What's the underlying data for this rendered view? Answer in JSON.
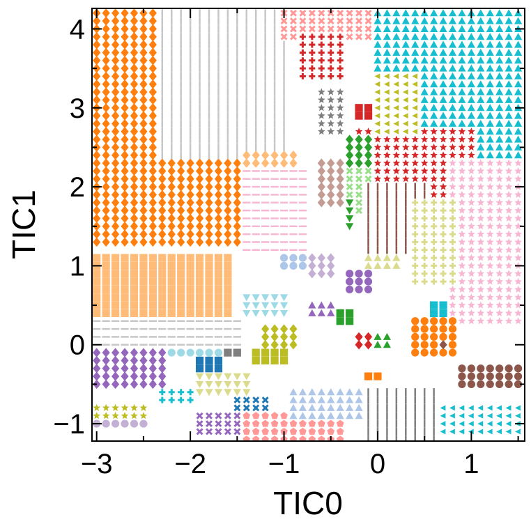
{
  "chart_data": {
    "type": "scatter",
    "subtype": "state-assignment-map",
    "title": "",
    "xlabel": "TIC0",
    "ylabel": "TIC1",
    "xlim": [
      -3.05,
      1.57
    ],
    "ylim": [
      -1.22,
      4.26
    ],
    "xticks": [
      -3,
      -2,
      -1,
      0,
      1
    ],
    "yticks": [
      -1,
      0,
      1,
      2,
      3,
      4
    ],
    "xtick_labels": [
      "−3",
      "−2",
      "−1",
      "0",
      "1"
    ],
    "ytick_labels": [
      "−1",
      "0",
      "1",
      "2",
      "3",
      "4"
    ],
    "grid": false,
    "legend": "none",
    "grid_step": 0.1,
    "regions": [
      {
        "state": 1,
        "marker": "diamond",
        "color": "#ff7f0e",
        "xmin": -3.0,
        "xmax": -1.5,
        "ymin": 1.3,
        "ymax": 4.25
      },
      {
        "state": 2,
        "marker": "vline",
        "color": "#c7c7c7",
        "xmin": -2.3,
        "xmax": -1.0,
        "ymin": 2.4,
        "ymax": 4.25
      },
      {
        "state": 3,
        "marker": "x",
        "color": "#ff9896",
        "xmin": -1.0,
        "xmax": -0.05,
        "ymin": 3.9,
        "ymax": 4.25
      },
      {
        "state": 4,
        "marker": "plus",
        "color": "#d62728",
        "xmin": -0.85,
        "xmax": -0.4,
        "ymin": 3.4,
        "ymax": 3.9
      },
      {
        "state": 5,
        "marker": "triangle",
        "color": "#17becf",
        "xmin": -0.05,
        "xmax": 1.57,
        "ymin": 2.4,
        "ymax": 4.25
      },
      {
        "state": 6,
        "marker": "square",
        "color": "#ffbb78",
        "xmin": -3.0,
        "xmax": -1.6,
        "ymin": 0.35,
        "ymax": 1.15
      },
      {
        "state": 7,
        "marker": "diamond",
        "color": "#ffbb78",
        "xmin": -1.4,
        "xmax": -0.9,
        "ymin": 1.3,
        "ymax": 2.4
      },
      {
        "state": 8,
        "marker": "star",
        "color": "#d62728",
        "xmin": -0.2,
        "xmax": 1.0,
        "ymin": 1.9,
        "ymax": 2.7
      },
      {
        "state": 9,
        "marker": "square",
        "color": "#d62728",
        "xmin": -0.25,
        "xmax": -0.05,
        "ymin": 2.85,
        "ymax": 3.05
      },
      {
        "state": 10,
        "marker": "star",
        "color": "#7f7f7f",
        "xmin": -0.65,
        "xmax": -0.35,
        "ymin": 2.7,
        "ymax": 3.2
      },
      {
        "state": 11,
        "marker": "triangle-left",
        "color": "#bcbd22",
        "xmin": -0.05,
        "xmax": 0.4,
        "ymin": 2.7,
        "ymax": 3.4
      },
      {
        "state": 12,
        "marker": "diamond",
        "color": "#2ca02c",
        "xmin": -0.35,
        "xmax": -0.1,
        "ymin": 2.2,
        "ymax": 2.6
      },
      {
        "state": 13,
        "marker": "diamond",
        "color": "#c49c94",
        "xmin": -0.6,
        "xmax": -0.35,
        "ymin": 1.8,
        "ymax": 2.3
      },
      {
        "state": 14,
        "marker": "x",
        "color": "#98df8a",
        "xmin": -0.35,
        "xmax": -0.1,
        "ymin": 1.7,
        "ymax": 2.2
      },
      {
        "state": 15,
        "marker": "triangle-down",
        "color": "#2ca02c",
        "xmin": -0.35,
        "xmax": -0.25,
        "ymin": 1.5,
        "ymax": 1.8
      },
      {
        "state": 16,
        "marker": "vline",
        "color": "#8c564b",
        "xmin": -0.1,
        "xmax": 0.5,
        "ymin": 1.2,
        "ymax": 2.0
      },
      {
        "state": 17,
        "marker": "star",
        "color": "#f7b6d2",
        "xmin": 0.8,
        "xmax": 1.57,
        "ymin": 0.3,
        "ymax": 2.3
      },
      {
        "state": 18,
        "marker": "plus",
        "color": "#dbdb8d",
        "xmin": 0.35,
        "xmax": 0.8,
        "ymin": 0.8,
        "ymax": 1.8
      },
      {
        "state": 19,
        "marker": "hline",
        "color": "#f7b6d2",
        "xmin": -1.45,
        "xmax": -0.75,
        "ymin": 1.2,
        "ymax": 2.2
      },
      {
        "state": 20,
        "marker": "circle",
        "color": "#aec7e8",
        "xmin": -1.05,
        "xmax": -0.75,
        "ymin": 0.95,
        "ymax": 1.15
      },
      {
        "state": 21,
        "marker": "diamond",
        "color": "#c5b0d5",
        "xmin": -0.75,
        "xmax": -0.45,
        "ymin": 0.85,
        "ymax": 1.15
      },
      {
        "state": 22,
        "marker": "triangle",
        "color": "#dbdb8d",
        "xmin": -0.15,
        "xmax": 0.2,
        "ymin": 0.95,
        "ymax": 1.15
      },
      {
        "state": 23,
        "marker": "circle",
        "color": "#9467bd",
        "xmin": -0.3,
        "xmax": -0.05,
        "ymin": 0.7,
        "ymax": 0.9
      },
      {
        "state": 24,
        "marker": "triangle",
        "color": "#9467bd",
        "xmin": -0.75,
        "xmax": -0.45,
        "ymin": 0.35,
        "ymax": 0.5
      },
      {
        "state": 25,
        "marker": "triangle-down",
        "color": "#9edae5",
        "xmin": -1.45,
        "xmax": -0.95,
        "ymin": 0.4,
        "ymax": 0.6
      },
      {
        "state": 26,
        "marker": "square",
        "color": "#2ca02c",
        "xmin": -0.45,
        "xmax": -0.25,
        "ymin": 0.25,
        "ymax": 0.45
      },
      {
        "state": 27,
        "marker": "square",
        "color": "#17becf",
        "xmin": 0.6,
        "xmax": 0.7,
        "ymin": 0.35,
        "ymax": 0.55
      },
      {
        "state": 28,
        "marker": "square",
        "color": "#7f7f7f",
        "xmin": -1.7,
        "xmax": -1.5,
        "ymin": -0.1,
        "ymax": 0.3
      },
      {
        "state": 29,
        "marker": "square",
        "color": "#1f77b4",
        "xmin": -1.9,
        "xmax": -1.7,
        "ymin": -0.3,
        "ymax": -0.2
      },
      {
        "state": 30,
        "marker": "circle",
        "color": "#9edae5",
        "xmin": -2.3,
        "xmax": -1.7,
        "ymin": -0.15,
        "ymax": -0.05
      },
      {
        "state": 31,
        "marker": "square",
        "color": "#bcbd22",
        "xmin": -1.3,
        "xmax": -1.0,
        "ymin": -0.2,
        "ymax": -0.05
      },
      {
        "state": 32,
        "marker": "diamond",
        "color": "#bcbd22",
        "xmin": -1.2,
        "xmax": -0.85,
        "ymin": -0.05,
        "ymax": 0.2
      },
      {
        "state": 33,
        "marker": "diamond",
        "color": "#d62728",
        "xmin": -0.25,
        "xmax": -0.05,
        "ymin": -0.05,
        "ymax": 0.15
      },
      {
        "state": 34,
        "marker": "triangle",
        "color": "#2ca02c",
        "xmin": -0.05,
        "xmax": 0.15,
        "ymin": -0.05,
        "ymax": 0.1
      },
      {
        "state": 35,
        "marker": "circle",
        "color": "#ff7f0e",
        "xmin": 0.35,
        "xmax": 0.85,
        "ymin": -0.1,
        "ymax": 0.3
      },
      {
        "state": 36,
        "marker": "diamond",
        "color": "#8c564b",
        "xmin": 0.65,
        "xmax": 0.75,
        "ymin": -0.05,
        "ymax": 0.05
      },
      {
        "state": 37,
        "marker": "diamond",
        "color": "#9467bd",
        "xmin": -3.0,
        "xmax": -2.3,
        "ymin": -0.55,
        "ymax": -0.1
      },
      {
        "state": 38,
        "marker": "circle",
        "color": "#8c564b",
        "xmin": 0.9,
        "xmax": 1.57,
        "ymin": -0.55,
        "ymax": -0.25
      },
      {
        "state": 39,
        "marker": "square",
        "color": "#ff7f0e",
        "xmin": -0.15,
        "xmax": 0.05,
        "ymin": -0.45,
        "ymax": -0.35
      },
      {
        "state": 40,
        "marker": "triangle-down",
        "color": "#dbdb8d",
        "xmin": -1.9,
        "xmax": -1.4,
        "ymin": -0.65,
        "ymax": -0.35
      },
      {
        "state": 41,
        "marker": "x",
        "color": "#1f77b4",
        "xmin": -1.5,
        "xmax": -1.2,
        "ymin": -0.9,
        "ymax": -0.7
      },
      {
        "state": 42,
        "marker": "x",
        "color": "#9467bd",
        "xmin": -1.9,
        "xmax": -1.5,
        "ymin": -1.1,
        "ymax": -0.85
      },
      {
        "state": 43,
        "marker": "pentagon",
        "color": "#ff9896",
        "xmin": -1.4,
        "xmax": -0.4,
        "ymin": -1.2,
        "ymax": -0.9
      },
      {
        "state": 44,
        "marker": "circle",
        "color": "#c5b0d5",
        "xmin": -3.0,
        "xmax": -2.5,
        "ymin": -1.05,
        "ymax": -0.95
      },
      {
        "state": 45,
        "marker": "star",
        "color": "#bcbd22",
        "xmin": -3.0,
        "xmax": -2.5,
        "ymin": -0.9,
        "ymax": -0.75
      },
      {
        "state": 46,
        "marker": "plus",
        "color": "#17becf",
        "xmin": -2.3,
        "xmax": -2.0,
        "ymin": -0.75,
        "ymax": -0.55
      },
      {
        "state": 47,
        "marker": "triangle-left",
        "color": "#17becf",
        "xmin": 0.6,
        "xmax": 1.57,
        "ymin": -1.1,
        "ymax": -0.8
      },
      {
        "state": 48,
        "marker": "vline",
        "color": "#7f7f7f",
        "xmin": -0.15,
        "xmax": 0.6,
        "ymin": -1.2,
        "ymax": -0.6
      },
      {
        "state": 49,
        "marker": "triangle",
        "color": "#aec7e8",
        "xmin": -0.9,
        "xmax": -0.2,
        "ymin": -0.9,
        "ymax": -0.6
      },
      {
        "state": 50,
        "marker": "hline",
        "color": "#c7c7c7",
        "xmin": -3.0,
        "xmax": -1.5,
        "ymin": 0.0,
        "ymax": 0.3
      }
    ]
  }
}
